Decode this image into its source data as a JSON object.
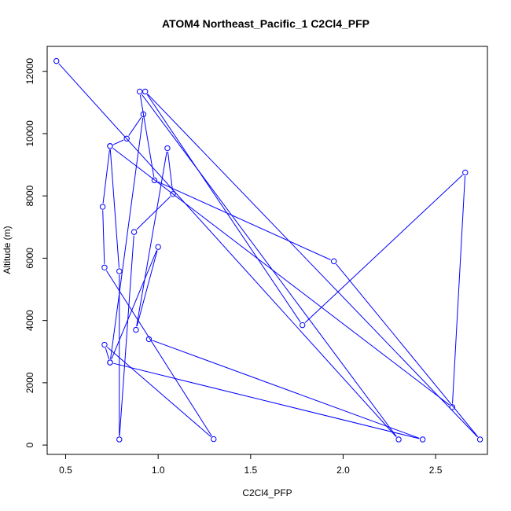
{
  "chart_data": {
    "type": "line",
    "title": "ATOM4 Northeast_Pacific_1 C2Cl4_PFP",
    "xlabel": "C2Cl4_PFP",
    "ylabel": "Altitude (m)",
    "xlim": [
      0.4,
      2.78
    ],
    "ylim": [
      -300,
      12800
    ],
    "x_ticks": [
      0.5,
      1.0,
      1.5,
      2.0,
      2.5
    ],
    "x_tick_labels": [
      "0.5",
      "1.0",
      "1.5",
      "2.0",
      "2.5"
    ],
    "y_ticks": [
      0,
      2000,
      4000,
      6000,
      8000,
      10000,
      12000
    ],
    "y_tick_labels": [
      "0",
      "2000",
      "4000",
      "6000",
      "8000",
      "10000",
      "12000"
    ],
    "grid": false,
    "legend": "none",
    "marker": "open-circle",
    "line_color": "#0000ff",
    "series": [
      {
        "x": [
          0.45,
          2.3,
          0.9,
          0.98,
          1.95,
          2.74,
          0.93,
          1.78,
          2.66,
          2.59,
          0.74,
          0.7,
          0.71,
          1.3,
          0.71,
          0.74,
          0.92,
          0.83,
          0.74,
          0.79,
          0.79,
          0.87,
          1.08,
          1.05,
          0.88,
          1.0,
          0.74,
          2.43,
          0.95
        ],
        "y": [
          12330,
          180,
          11350,
          8500,
          5900,
          180,
          11350,
          3850,
          8750,
          1220,
          9600,
          7650,
          5700,
          190,
          3220,
          2650,
          10620,
          9840,
          9600,
          5580,
          180,
          6840,
          8060,
          9530,
          3700,
          6360,
          2650,
          180,
          3400
        ]
      }
    ]
  }
}
